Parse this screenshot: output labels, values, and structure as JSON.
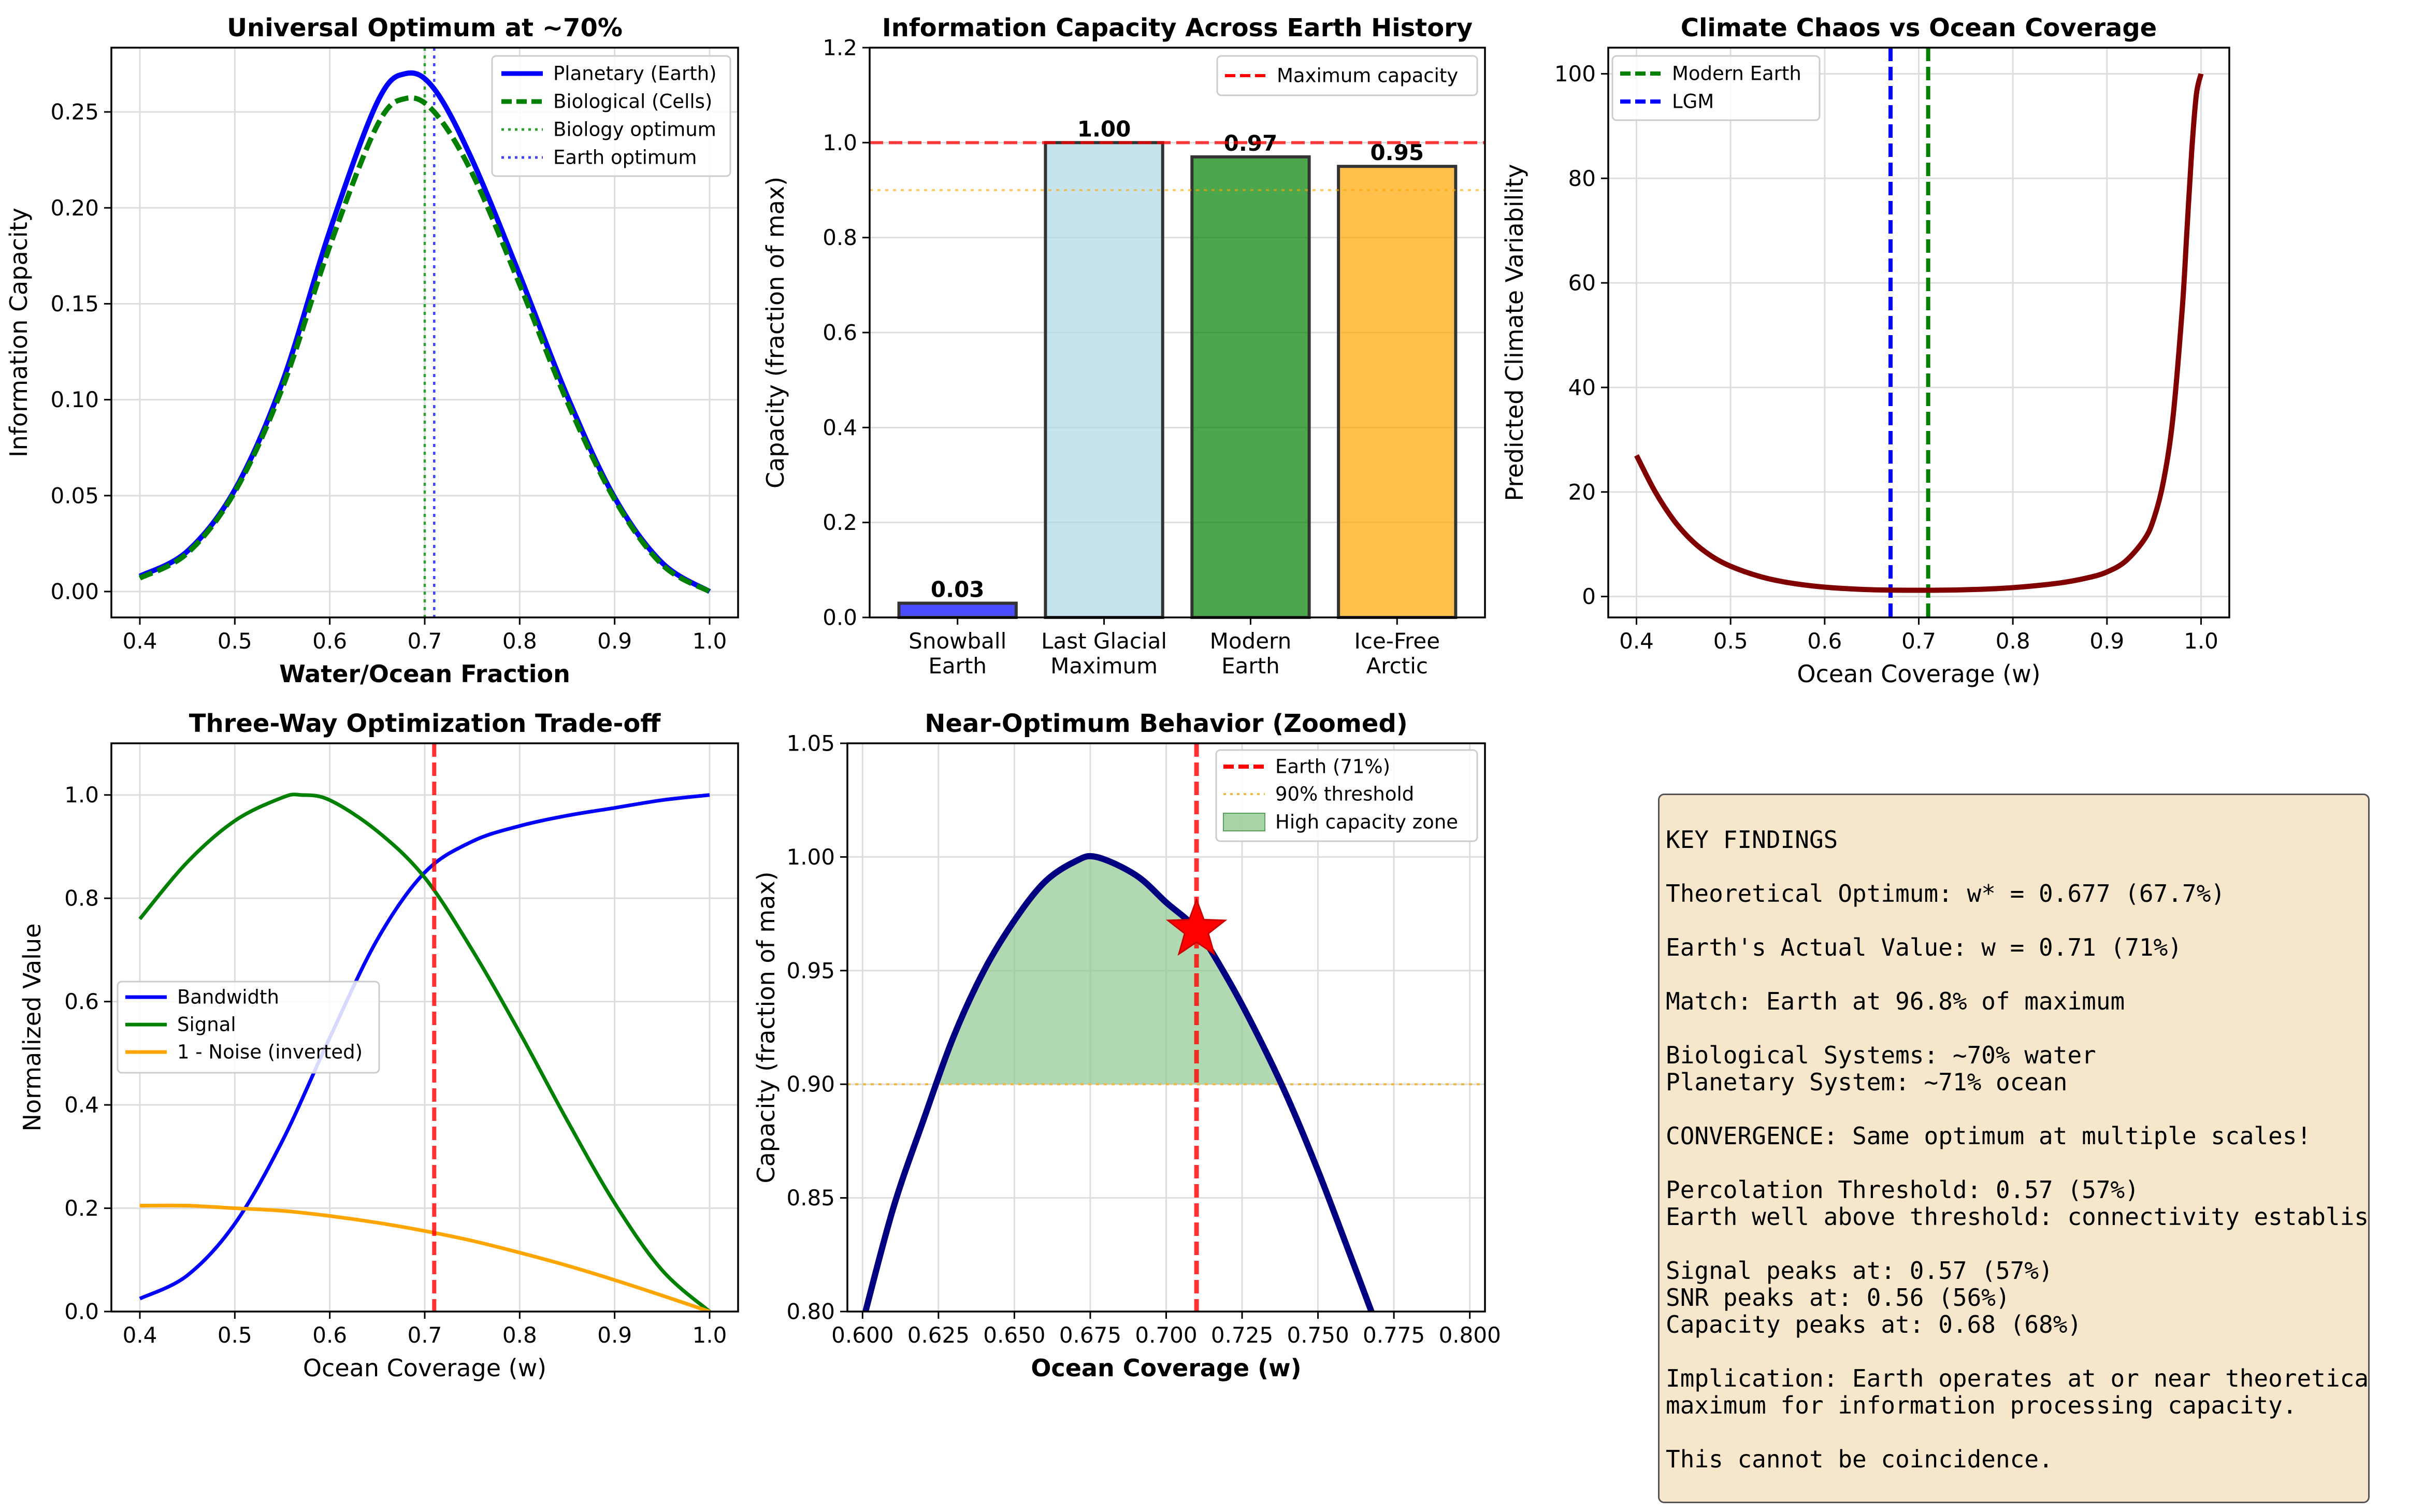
{
  "colors": {
    "blue": "#0000ff",
    "green": "#008000",
    "orange": "#ffa500",
    "red": "#ff0000",
    "darkred": "#800000",
    "navy": "#000080",
    "grid": "#dddddd",
    "frame": "#000000",
    "dimgreen": "#2ca02c",
    "bluebar": "#0000ff",
    "lightblue": "#add8e6",
    "greenbar": "#008000",
    "orangebar": "#ffa500",
    "fill": "#90c990",
    "gold": "#f0b840"
  },
  "chart_data": [
    {
      "id": "p1",
      "type": "line",
      "title": "Universal Optimum at ~70%",
      "xlabel": "Water/Ocean Fraction",
      "ylabel": "Information Capacity",
      "xlim": [
        0.37,
        1.03
      ],
      "ylim": [
        -0.0135,
        0.2835
      ],
      "xticks": [
        0.4,
        0.5,
        0.6,
        0.7,
        0.8,
        0.9,
        1.0
      ],
      "xticklabels": [
        "0.4",
        "0.5",
        "0.6",
        "0.7",
        "0.8",
        "0.9",
        "1.0"
      ],
      "yticks": [
        0.0,
        0.05,
        0.1,
        0.15,
        0.2,
        0.25
      ],
      "yticklabels": [
        "0.00",
        "0.05",
        "0.10",
        "0.15",
        "0.20",
        "0.25"
      ],
      "legend_position": "top-right",
      "series": [
        {
          "name": "Planetary (Earth)",
          "style": "solid",
          "color": "#0000ff",
          "x": [
            0.4,
            0.45,
            0.5,
            0.55,
            0.6,
            0.65,
            0.68,
            0.71,
            0.75,
            0.8,
            0.85,
            0.9,
            0.95,
            1.0
          ],
          "y": [
            0.008,
            0.021,
            0.053,
            0.109,
            0.188,
            0.255,
            0.27,
            0.262,
            0.225,
            0.165,
            0.102,
            0.049,
            0.015,
            0.0
          ]
        },
        {
          "name": "Biological (Cells)",
          "style": "dashed",
          "color": "#008000",
          "x": [
            0.4,
            0.45,
            0.5,
            0.55,
            0.6,
            0.65,
            0.68,
            0.71,
            0.75,
            0.8,
            0.85,
            0.9,
            0.95,
            1.0
          ],
          "y": [
            0.007,
            0.02,
            0.052,
            0.106,
            0.18,
            0.243,
            0.257,
            0.25,
            0.218,
            0.16,
            0.099,
            0.048,
            0.014,
            0.0
          ]
        }
      ],
      "vlines": [
        {
          "name": "Biology optimum",
          "x": 0.7,
          "style": "dotted",
          "color": "#2ca02c"
        },
        {
          "name": "Earth optimum",
          "x": 0.71,
          "style": "dotted",
          "color": "#4040ff"
        }
      ]
    },
    {
      "id": "p2",
      "type": "bar",
      "title": "Information Capacity Across Earth History",
      "ylabel": "Capacity (fraction of max)",
      "ylim": [
        0,
        1.2
      ],
      "yticks": [
        0.0,
        0.2,
        0.4,
        0.6,
        0.8,
        1.0,
        1.2
      ],
      "yticklabels": [
        "0.0",
        "0.2",
        "0.4",
        "0.6",
        "0.8",
        "1.0",
        "1.2"
      ],
      "categories": [
        "Snowball\nEarth",
        "Last Glacial\nMaximum",
        "Modern\nEarth",
        "Ice-Free\nArctic"
      ],
      "values": [
        0.03,
        1.0,
        0.97,
        0.95
      ],
      "value_labels": [
        "0.03",
        "1.00",
        "0.97",
        "0.95"
      ],
      "bar_colors": [
        "#0000ff",
        "#add8e6",
        "#008000",
        "#ffa500"
      ],
      "hlines": [
        {
          "name": "Maximum capacity",
          "y": 1.0,
          "style": "dashed",
          "color": "#ff0000"
        },
        {
          "name": "90% reference",
          "y": 0.9,
          "style": "dotted",
          "color": "#ffa500"
        }
      ],
      "legend_position": "top-right"
    },
    {
      "id": "p3",
      "type": "line",
      "title": "Climate Chaos vs Ocean Coverage",
      "xlabel": "Ocean Coverage (w)",
      "ylabel": "Predicted Climate Variability",
      "xlim": [
        0.37,
        1.03
      ],
      "ylim": [
        -4,
        105
      ],
      "xticks": [
        0.4,
        0.5,
        0.6,
        0.7,
        0.8,
        0.9,
        1.0
      ],
      "xticklabels": [
        "0.4",
        "0.5",
        "0.6",
        "0.7",
        "0.8",
        "0.9",
        "1.0"
      ],
      "yticks": [
        0,
        20,
        40,
        60,
        80,
        100
      ],
      "yticklabels": [
        "0",
        "20",
        "40",
        "60",
        "80",
        "100"
      ],
      "series": [
        {
          "name": "Climate variability",
          "style": "solid",
          "color": "#800000",
          "x": [
            0.4,
            0.42,
            0.44,
            0.46,
            0.48,
            0.5,
            0.53,
            0.56,
            0.6,
            0.65,
            0.7,
            0.75,
            0.8,
            0.85,
            0.88,
            0.9,
            0.92,
            0.94,
            0.95,
            0.96,
            0.97,
            0.98,
            0.985,
            0.99,
            0.995,
            1.0
          ],
          "y": [
            27,
            20,
            14.5,
            10.5,
            7.7,
            5.8,
            3.9,
            2.7,
            1.8,
            1.3,
            1.2,
            1.3,
            1.7,
            2.6,
            3.6,
            4.7,
            6.8,
            11,
            15,
            22,
            34,
            55,
            70,
            85,
            96,
            100
          ]
        }
      ],
      "vlines": [
        {
          "name": "Modern Earth",
          "x": 0.71,
          "style": "dashed",
          "color": "#008000"
        },
        {
          "name": "LGM",
          "x": 0.67,
          "style": "dashed",
          "color": "#0000ff"
        }
      ],
      "legend_position": "top-left"
    },
    {
      "id": "p4",
      "type": "line",
      "title": "Three-Way Optimization Trade-off",
      "xlabel": "Ocean Coverage (w)",
      "ylabel": "Normalized Value",
      "xlim": [
        0.37,
        1.03
      ],
      "ylim": [
        0,
        1.1
      ],
      "xticks": [
        0.4,
        0.5,
        0.6,
        0.7,
        0.8,
        0.9,
        1.0
      ],
      "xticklabels": [
        "0.4",
        "0.5",
        "0.6",
        "0.7",
        "0.8",
        "0.9",
        "1.0"
      ],
      "yticks": [
        0.0,
        0.2,
        0.4,
        0.6,
        0.8,
        1.0
      ],
      "yticklabels": [
        "0.0",
        "0.2",
        "0.4",
        "0.6",
        "0.8",
        "1.0"
      ],
      "series": [
        {
          "name": "Bandwidth",
          "style": "solid",
          "color": "#0000ff",
          "x": [
            0.4,
            0.45,
            0.5,
            0.55,
            0.6,
            0.65,
            0.7,
            0.75,
            0.8,
            0.85,
            0.9,
            0.95,
            1.0
          ],
          "y": [
            0.025,
            0.07,
            0.17,
            0.33,
            0.53,
            0.72,
            0.85,
            0.91,
            0.94,
            0.96,
            0.975,
            0.99,
            1.0
          ]
        },
        {
          "name": "Signal",
          "style": "solid",
          "color": "#008000",
          "x": [
            0.4,
            0.45,
            0.5,
            0.55,
            0.57,
            0.6,
            0.65,
            0.7,
            0.75,
            0.8,
            0.85,
            0.9,
            0.95,
            1.0
          ],
          "y": [
            0.76,
            0.87,
            0.95,
            0.995,
            1.0,
            0.99,
            0.93,
            0.84,
            0.7,
            0.54,
            0.37,
            0.21,
            0.08,
            0.0
          ]
        },
        {
          "name": "1 - Noise (inverted)",
          "style": "solid",
          "color": "#ffa500",
          "x": [
            0.4,
            0.45,
            0.5,
            0.55,
            0.6,
            0.65,
            0.7,
            0.75,
            0.8,
            0.85,
            0.9,
            0.95,
            1.0
          ],
          "y": [
            0.205,
            0.205,
            0.2,
            0.195,
            0.185,
            0.172,
            0.156,
            0.137,
            0.114,
            0.089,
            0.061,
            0.031,
            0.0
          ]
        }
      ],
      "vlines": [
        {
          "name": "Earth",
          "x": 0.71,
          "style": "dashed",
          "color": "#ff0000"
        }
      ],
      "legend_position": "center-left"
    },
    {
      "id": "p5",
      "type": "line",
      "title": "Near-Optimum Behavior (Zoomed)",
      "xlabel": "Ocean Coverage (w)",
      "ylabel": "Capacity (fraction of max)",
      "xlim": [
        0.595,
        0.805
      ],
      "ylim": [
        0.8,
        1.05
      ],
      "xticks": [
        0.6,
        0.625,
        0.65,
        0.675,
        0.7,
        0.725,
        0.75,
        0.775,
        0.8
      ],
      "xticklabels": [
        "0.600",
        "0.625",
        "0.650",
        "0.675",
        "0.700",
        "0.725",
        "0.750",
        "0.775",
        "0.800"
      ],
      "yticks": [
        0.8,
        0.85,
        0.9,
        0.95,
        1.0,
        1.05
      ],
      "yticklabels": [
        "0.80",
        "0.85",
        "0.90",
        "0.95",
        "1.00",
        "1.05"
      ],
      "series": [
        {
          "name": "Capacity",
          "style": "solid",
          "color": "#000080",
          "x": [
            0.6,
            0.61,
            0.62,
            0.63,
            0.64,
            0.65,
            0.66,
            0.67,
            0.677,
            0.69,
            0.7,
            0.71,
            0.72,
            0.73,
            0.74,
            0.75,
            0.76,
            0.769
          ],
          "y": [
            0.795,
            0.845,
            0.884,
            0.921,
            0.95,
            0.972,
            0.989,
            0.998,
            1.0,
            0.992,
            0.98,
            0.968,
            0.947,
            0.922,
            0.894,
            0.862,
            0.827,
            0.795
          ]
        }
      ],
      "fill_between": {
        "name": "High capacity zone",
        "x_from": 0.625,
        "x_to": 0.738,
        "y_base": 0.9
      },
      "vlines": [
        {
          "name": "Earth (71%)",
          "x": 0.71,
          "style": "dashed",
          "color": "#ff0000"
        }
      ],
      "hlines": [
        {
          "name": "90% threshold",
          "y": 0.9,
          "style": "dotted",
          "color": "#f0b840"
        }
      ],
      "marker": {
        "x": 0.71,
        "y": 0.968,
        "shape": "star",
        "color": "#ff0000"
      },
      "legend_position": "top-right"
    }
  ],
  "findings": {
    "lines": [
      "KEY FINDINGS",
      "",
      "Theoretical Optimum: w* = 0.677 (67.7%)",
      "",
      "Earth's Actual Value: w = 0.71 (71%)",
      "",
      "Match: Earth at 96.8% of maximum",
      "",
      "Biological Systems: ~70% water",
      "Planetary System: ~71% ocean",
      "",
      "CONVERGENCE: Same optimum at multiple scales!",
      "",
      "Percolation Threshold: 0.57 (57%)",
      "Earth well above threshold: connectivity established",
      "",
      "Signal peaks at: 0.57 (57%)",
      "SNR peaks at: 0.56 (56%)",
      "Capacity peaks at: 0.68 (68%)",
      "",
      "Implication: Earth operates at or near theoretical",
      "maximum for information processing capacity.",
      "",
      "This cannot be coincidence."
    ]
  }
}
